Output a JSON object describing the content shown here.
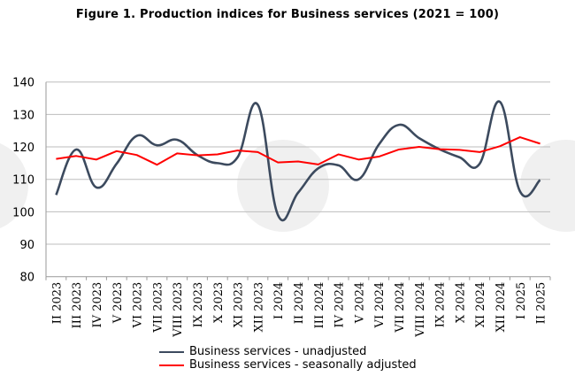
{
  "title": "Figure 1. Production indices for Business services (2021 = 100)",
  "chart_data": {
    "type": "line",
    "title": "Figure 1. Production indices for Business services (2021 = 100)",
    "categories": [
      "II 2023",
      "III 2023",
      "IV 2023",
      "V 2023",
      "VI 2023",
      "VII 2023",
      "VIII 2023",
      "IX 2023",
      "X 2023",
      "XI 2023",
      "XII 2023",
      "I 2024",
      "II 2024",
      "III 2024",
      "IV 2024",
      "V 2024",
      "VI 2024",
      "VII 2024",
      "VIII 2024",
      "IX 2024",
      "X 2024",
      "XI 2024",
      "XII 2024",
      "I 2025",
      "II 2025"
    ],
    "ylim": [
      80,
      140
    ],
    "yticks": [
      80,
      90,
      100,
      110,
      120,
      130,
      140
    ],
    "grid": true,
    "legend": "bottom",
    "series": [
      {
        "name": "Business services - unadjusted",
        "color": "#3c4a5e",
        "smooth": true,
        "values": [
          105.2,
          119.2,
          107.5,
          114.8,
          123.4,
          120.5,
          122.2,
          117.5,
          115.0,
          116.8,
          133.0,
          99.0,
          105.9,
          113.4,
          114.3,
          110.0,
          120.7,
          126.8,
          122.7,
          119.3,
          116.8,
          114.8,
          133.9,
          106.3,
          109.8
        ]
      },
      {
        "name": "Business services - seasonally adjusted",
        "color": "#ff0000",
        "smooth": false,
        "values": [
          116.3,
          117.2,
          116.1,
          118.7,
          117.5,
          114.5,
          118.0,
          117.4,
          117.7,
          118.9,
          118.4,
          115.2,
          115.5,
          114.6,
          117.7,
          116.1,
          117.0,
          119.2,
          120.0,
          119.3,
          119.1,
          118.4,
          120.2,
          123.0,
          121.0
        ]
      }
    ]
  }
}
